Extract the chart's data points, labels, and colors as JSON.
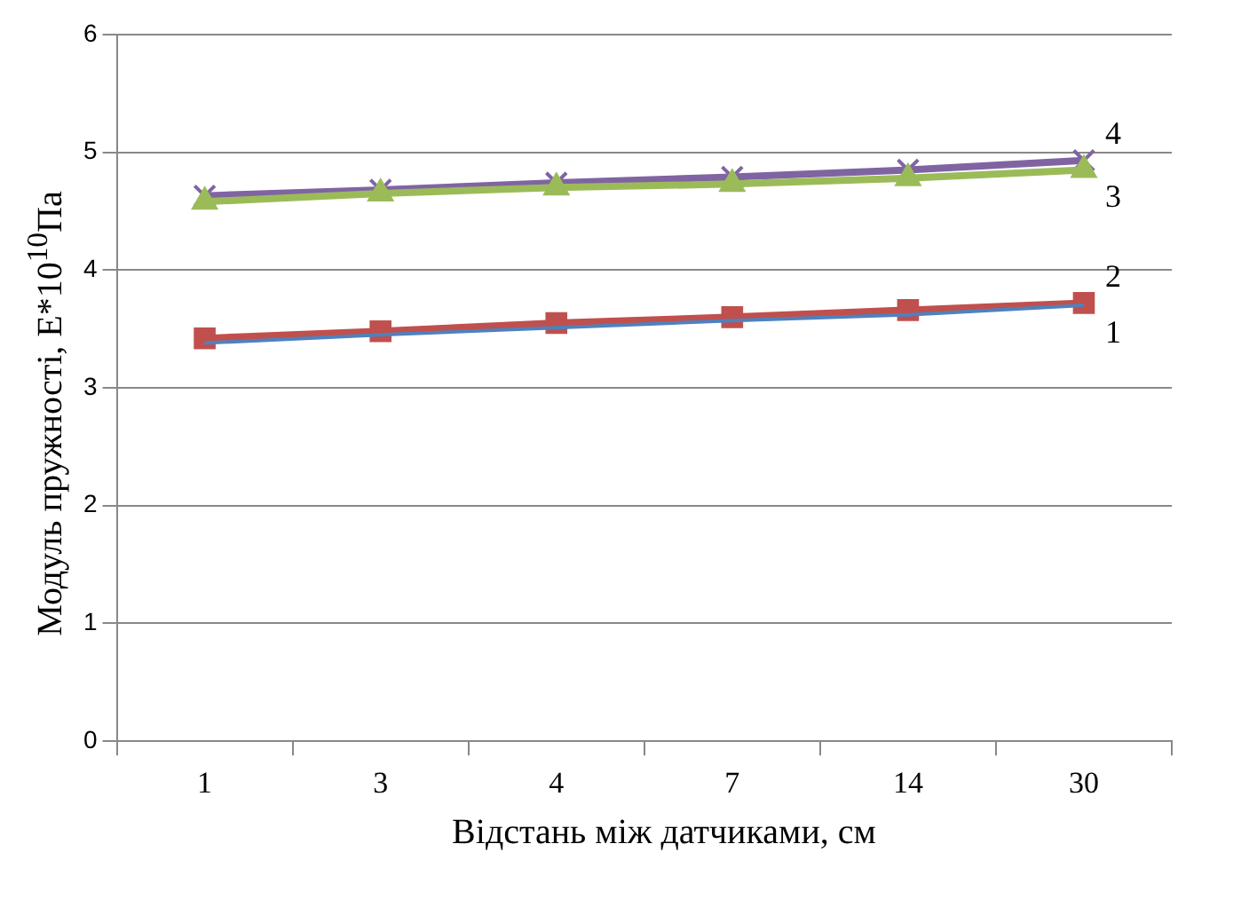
{
  "chart_data": {
    "type": "line",
    "xlabel": "Відстань між датчиками, см",
    "ylabel": "Модуль пружності,  E*10$^{10}$Па",
    "categories": [
      "1",
      "3",
      "4",
      "7",
      "14",
      "30"
    ],
    "series": [
      {
        "name": "1",
        "color": "#4f81bd",
        "marker": "none",
        "values": [
          3.38,
          3.45,
          3.51,
          3.57,
          3.62,
          3.7
        ]
      },
      {
        "name": "2",
        "color": "#c0504d",
        "marker": "square",
        "values": [
          3.42,
          3.48,
          3.55,
          3.6,
          3.66,
          3.72
        ]
      },
      {
        "name": "3",
        "color": "#9bbb59",
        "marker": "triangle",
        "values": [
          4.58,
          4.65,
          4.7,
          4.73,
          4.78,
          4.85
        ]
      },
      {
        "name": "4",
        "color": "#8064a2",
        "marker": "cross",
        "values": [
          4.63,
          4.68,
          4.74,
          4.79,
          4.85,
          4.93
        ]
      }
    ],
    "ylim": [
      0,
      6
    ],
    "yticks": [
      0,
      1,
      2,
      3,
      4,
      5,
      6
    ],
    "grid": "y",
    "legend": false
  }
}
